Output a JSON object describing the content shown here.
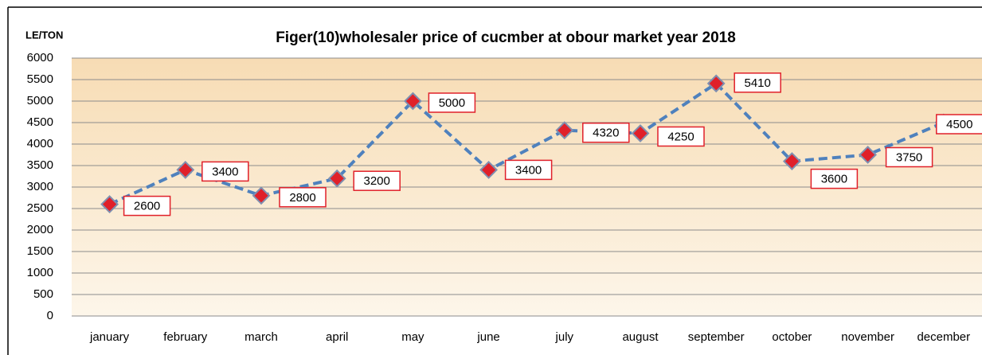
{
  "chart_data": {
    "type": "line",
    "title": "Figer(10)wholesaler price  of cucmber at obour market year 2018",
    "y_label": "LE/TON",
    "categories": [
      "january",
      "february",
      "march",
      "april",
      "may",
      "june",
      "july",
      "august",
      "september",
      "october",
      "november",
      "december"
    ],
    "values": [
      2600,
      3400,
      2800,
      3200,
      5000,
      3400,
      4320,
      4250,
      5410,
      3600,
      3750,
      4500
    ],
    "color": "#4f81bd",
    "marker_color": "#e0202a",
    "ylim": [
      0,
      6000
    ],
    "yticks": [
      0,
      500,
      1000,
      1500,
      2000,
      2500,
      3000,
      3500,
      4000,
      4500,
      5000,
      5500,
      6000
    ],
    "grid": true
  }
}
